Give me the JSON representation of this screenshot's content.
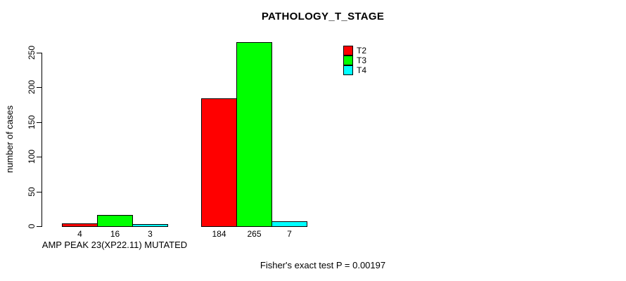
{
  "page": {
    "background": "#FFFFFF"
  },
  "chart_data": {
    "type": "bar",
    "title": "PATHOLOGY_T_STAGE",
    "ylabel": "number of cases",
    "xlabel": "",
    "ylim": [
      0,
      250
    ],
    "yticks": [
      0,
      50,
      100,
      150,
      200,
      250
    ],
    "grid": false,
    "legend": {
      "position": "top-right-inside",
      "entries": [
        "T2",
        "T3",
        "T4"
      ]
    },
    "categories": [
      "AMP PEAK 23(XP22.11) MUTATED",
      ""
    ],
    "series": [
      {
        "name": "T2",
        "color": "#FF0000",
        "values": [
          4,
          184
        ]
      },
      {
        "name": "T3",
        "color": "#00FF00",
        "values": [
          16,
          265
        ]
      },
      {
        "name": "T4",
        "color": "#00FFFF",
        "values": [
          3,
          7
        ]
      }
    ],
    "bar_value_labels": [
      [
        "4",
        "16",
        "3"
      ],
      [
        "184",
        "265",
        "7"
      ]
    ],
    "annotation": "Fisher's exact test P = 0.00197"
  }
}
